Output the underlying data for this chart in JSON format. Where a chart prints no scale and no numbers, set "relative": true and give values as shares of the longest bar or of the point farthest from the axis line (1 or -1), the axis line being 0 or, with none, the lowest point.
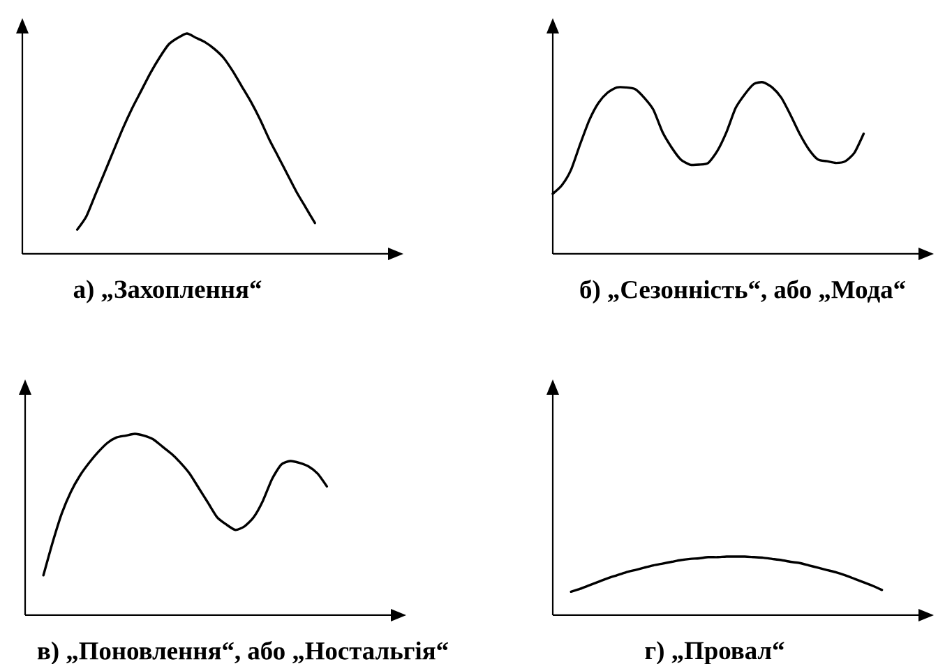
{
  "chart_data": [
    {
      "type": "line",
      "title": "а) „Захоплення“",
      "relative": true,
      "color": "#000000",
      "categories": [
        null,
        null,
        null,
        null,
        null,
        null,
        null,
        null,
        null,
        null,
        null,
        null,
        null,
        null,
        null,
        null,
        null,
        null,
        null,
        null,
        null,
        null,
        null,
        null,
        null,
        null,
        null,
        null,
        null,
        null,
        null,
        null,
        null,
        null,
        null,
        null,
        null,
        null,
        null,
        null,
        null
      ],
      "values": [
        null,
        null,
        null,
        null,
        null,
        null,
        0.11,
        0.17,
        0.27,
        0.37,
        0.47,
        0.57,
        0.66,
        0.74,
        0.82,
        0.89,
        0.95,
        0.98,
        1.0,
        0.98,
        0.96,
        0.93,
        0.89,
        0.83,
        0.76,
        0.69,
        0.61,
        0.52,
        0.44,
        0.36,
        0.28,
        0.21,
        0.14,
        null,
        null,
        null,
        null,
        null,
        null,
        null,
        null
      ]
    },
    {
      "type": "line",
      "title": "б) „Сезонність“, або „Мода“",
      "relative": true,
      "color": "#000000",
      "categories": [
        null,
        null,
        null,
        null,
        null,
        null,
        null,
        null,
        null,
        null,
        null,
        null,
        null,
        null,
        null,
        null,
        null,
        null,
        null,
        null,
        null,
        null,
        null,
        null,
        null,
        null,
        null,
        null,
        null,
        null,
        null,
        null,
        null,
        null,
        null,
        null,
        null,
        null,
        null,
        null,
        null
      ],
      "values": [
        0.35,
        0.4,
        0.49,
        0.64,
        0.78,
        0.88,
        0.94,
        0.97,
        0.97,
        0.96,
        0.91,
        0.84,
        0.71,
        0.62,
        0.55,
        0.52,
        0.52,
        0.53,
        0.6,
        0.71,
        0.85,
        0.93,
        0.99,
        1.0,
        0.97,
        0.91,
        0.81,
        0.7,
        0.61,
        0.55,
        0.54,
        0.53,
        0.54,
        0.59,
        0.7,
        null,
        null,
        null,
        null,
        null,
        null
      ]
    },
    {
      "type": "line",
      "title": "в) „Поновлення“, або „Ностальгія“",
      "relative": true,
      "color": "#000000",
      "categories": [
        null,
        null,
        null,
        null,
        null,
        null,
        null,
        null,
        null,
        null,
        null,
        null,
        null,
        null,
        null,
        null,
        null,
        null,
        null,
        null,
        null,
        null,
        null,
        null,
        null,
        null,
        null,
        null,
        null,
        null,
        null,
        null,
        null,
        null,
        null,
        null,
        null,
        null,
        null,
        null,
        null
      ],
      "values": [
        null,
        null,
        0.22,
        0.4,
        0.56,
        0.68,
        0.77,
        0.84,
        0.9,
        0.95,
        0.98,
        0.99,
        1.0,
        0.99,
        0.97,
        0.93,
        0.89,
        0.84,
        0.78,
        0.7,
        0.62,
        0.54,
        0.5,
        0.47,
        0.49,
        0.54,
        0.63,
        0.75,
        0.83,
        0.85,
        0.84,
        0.82,
        0.78,
        0.71,
        null,
        null,
        null,
        null,
        null,
        null,
        null
      ]
    },
    {
      "type": "line",
      "title": "г) „Провал“",
      "relative": true,
      "color": "#000000",
      "categories": [
        null,
        null,
        null,
        null,
        null,
        null,
        null,
        null,
        null,
        null,
        null,
        null,
        null,
        null,
        null,
        null,
        null,
        null,
        null,
        null,
        null,
        null,
        null,
        null,
        null,
        null,
        null,
        null,
        null,
        null,
        null,
        null,
        null,
        null,
        null,
        null,
        null,
        null,
        null,
        null,
        null
      ],
      "values": [
        null,
        null,
        0.4,
        0.45,
        0.51,
        0.57,
        0.63,
        0.68,
        0.73,
        0.77,
        0.81,
        0.85,
        0.88,
        0.91,
        0.94,
        0.96,
        0.97,
        0.99,
        0.99,
        1.0,
        1.0,
        1.0,
        0.99,
        0.98,
        0.96,
        0.94,
        0.91,
        0.89,
        0.85,
        0.81,
        0.77,
        0.73,
        0.68,
        0.62,
        0.56,
        0.5,
        0.43,
        null,
        null,
        null,
        null
      ]
    }
  ]
}
